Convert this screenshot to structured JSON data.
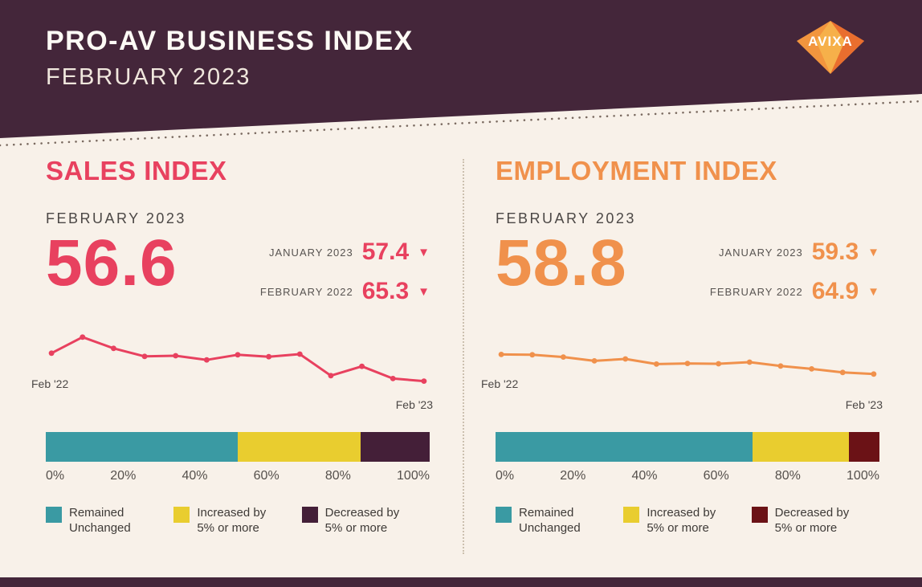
{
  "header": {
    "title": "PRO-AV BUSINESS INDEX",
    "subtitle": "FEBRUARY 2023",
    "logo_text": "AVIXA"
  },
  "icons": {
    "down_arrow": "▼"
  },
  "colors": {
    "header_bg": "#44263a",
    "page_bg": "#f8f1e9",
    "sales_accent": "#e8415f",
    "employment_accent": "#f0914c",
    "teal": "#3a9aa3",
    "yellow": "#e9cd2f",
    "dark_plum": "#441f38",
    "dark_red": "#6b1216"
  },
  "panels": {
    "sales": {
      "title": "SALES INDEX",
      "period": "FEBRUARY 2023",
      "value": "56.6",
      "comparisons": [
        {
          "label": "JANUARY 2023",
          "value": "57.4"
        },
        {
          "label": "FEBRUARY 2022",
          "value": "65.3"
        }
      ],
      "start_label": "Feb '22",
      "end_label": "Feb '23"
    },
    "employment": {
      "title": "EMPLOYMENT INDEX",
      "period": "FEBRUARY 2023",
      "value": "58.8",
      "comparisons": [
        {
          "label": "JANUARY 2023",
          "value": "59.3"
        },
        {
          "label": "FEBRUARY 2022",
          "value": "64.9"
        }
      ],
      "start_label": "Feb '22",
      "end_label": "Feb '23"
    }
  },
  "chart_data": [
    {
      "type": "line",
      "name": "sales-index-trend",
      "title": "Sales Index monthly trend",
      "x_range": [
        "Feb '22",
        "Feb '23"
      ],
      "values": [
        65.3,
        70.3,
        66.8,
        64.3,
        64.5,
        63.2,
        64.8,
        64.2,
        65.0,
        58.3,
        61.2,
        57.4,
        56.6
      ],
      "ylim": [
        55,
        72.5
      ],
      "color": "#e8415f",
      "grid": false
    },
    {
      "type": "line",
      "name": "employment-index-trend",
      "title": "Employment Index monthly trend",
      "x_range": [
        "Feb '22",
        "Feb '23"
      ],
      "values": [
        64.9,
        64.8,
        64.1,
        62.9,
        63.5,
        61.9,
        62.1,
        62.0,
        62.5,
        61.3,
        60.4,
        59.3,
        58.8
      ],
      "ylim": [
        55,
        72.5
      ],
      "color": "#f0914c",
      "grid": false
    },
    {
      "type": "stacked-bar",
      "name": "sales-change-distribution",
      "segments": [
        {
          "label": "Remained Unchanged",
          "value": 50,
          "color": "#3a9aa3"
        },
        {
          "label": "Increased by 5% or more",
          "value": 32,
          "color": "#e9cd2f"
        },
        {
          "label": "Decreased by 5% or more",
          "value": 18,
          "color": "#441f38"
        }
      ],
      "tick_labels": [
        "0%",
        "20%",
        "40%",
        "60%",
        "80%",
        "100%"
      ],
      "xlim": [
        0,
        100
      ]
    },
    {
      "type": "stacked-bar",
      "name": "employment-change-distribution",
      "segments": [
        {
          "label": "Remained Unchanged",
          "value": 67,
          "color": "#3a9aa3"
        },
        {
          "label": "Increased by 5% or more",
          "value": 25,
          "color": "#e9cd2f"
        },
        {
          "label": "Decreased by 5% or more",
          "value": 8,
          "color": "#6b1216"
        }
      ],
      "tick_labels": [
        "0%",
        "20%",
        "40%",
        "60%",
        "80%",
        "100%"
      ],
      "xlim": [
        0,
        100
      ]
    }
  ]
}
